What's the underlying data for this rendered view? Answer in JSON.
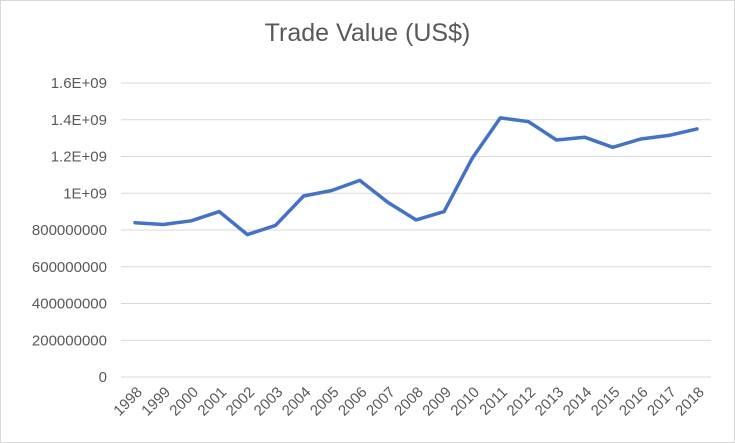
{
  "chart_data": {
    "type": "line",
    "title": "Trade Value (US$)",
    "xlabel": "",
    "ylabel": "",
    "ylim": [
      0,
      1600000000
    ],
    "y_ticks": [
      "0",
      "200000000",
      "400000000",
      "600000000",
      "800000000",
      "1E+09",
      "1.2E+09",
      "1.4E+09",
      "1.6E+09"
    ],
    "y_tick_values": [
      0,
      200000000,
      400000000,
      600000000,
      800000000,
      1000000000,
      1200000000,
      1400000000,
      1600000000
    ],
    "categories": [
      "1998",
      "1999",
      "2000",
      "2001",
      "2002",
      "2003",
      "2004",
      "2005",
      "2006",
      "2007",
      "2008",
      "2009",
      "2010",
      "2011",
      "2012",
      "2013",
      "2014",
      "2015",
      "2016",
      "2017",
      "2018"
    ],
    "series": [
      {
        "values": [
          840000000,
          830000000,
          850000000,
          900000000,
          775000000,
          825000000,
          985000000,
          1015000000,
          1070000000,
          950000000,
          855000000,
          900000000,
          1190000000,
          1410000000,
          1390000000,
          1290000000,
          1305000000,
          1250000000,
          1295000000,
          1315000000,
          1350000000
        ],
        "color": "#4472c4"
      }
    ],
    "grid": true,
    "legend": "none"
  }
}
